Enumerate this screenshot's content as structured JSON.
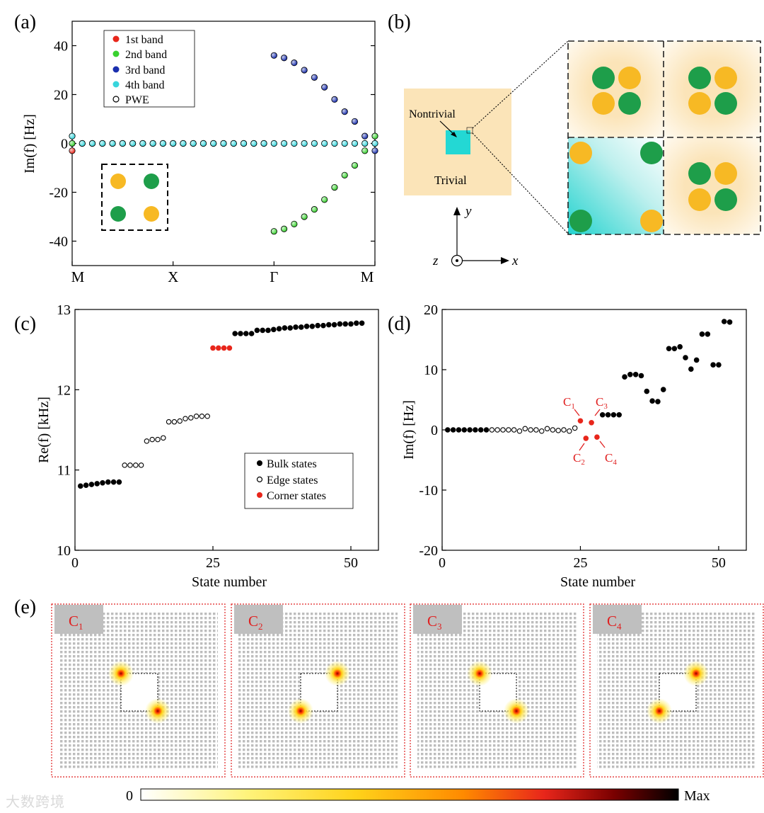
{
  "panels": {
    "a": {
      "label": "(a)",
      "ylabel": "Im(f) [Hz]",
      "ytick_labels": [
        "40",
        "20",
        "0",
        "-20",
        "-40"
      ],
      "xtick_labels": [
        "M",
        "X",
        "Γ",
        "M"
      ],
      "legend": [
        "1st band",
        "2nd band",
        "3rd band",
        "4th band",
        "PWE"
      ]
    },
    "b": {
      "label": "(b)",
      "nontrivial_label": "Nontrivial",
      "trivial_label": "Trivial",
      "axis_x": "x",
      "axis_y": "y",
      "axis_z": "z"
    },
    "c": {
      "label": "(c)",
      "xlabel": "State number",
      "ylabel": "Re(f) [kHz]",
      "ytick_labels": [
        "13",
        "12",
        "11",
        "10"
      ],
      "xtick_labels": [
        "0",
        "25",
        "50"
      ],
      "legend": [
        "Bulk states",
        "Edge states",
        "Corner states"
      ]
    },
    "d": {
      "label": "(d)",
      "xlabel": "State number",
      "ylabel": "Im(f) [Hz]",
      "ytick_labels": [
        "20",
        "10",
        "0",
        "-10",
        "-20"
      ],
      "xtick_labels": [
        "0",
        "25",
        "50"
      ],
      "corner_labels": [
        {
          "main": "C",
          "sub": "1"
        },
        {
          "main": "C",
          "sub": "3"
        },
        {
          "main": "C",
          "sub": "2"
        },
        {
          "main": "C",
          "sub": "4"
        }
      ]
    },
    "e": {
      "label": "(e)",
      "maps": [
        {
          "main": "C",
          "sub": "1"
        },
        {
          "main": "C",
          "sub": "2"
        },
        {
          "main": "C",
          "sub": "3"
        },
        {
          "main": "C",
          "sub": "4"
        }
      ],
      "colorbar_min": "0",
      "colorbar_max": "Max"
    }
  },
  "watermark": "大数跨境",
  "colors": {
    "band1": "#e8261b",
    "band2": "#39d12f",
    "band3": "#1a2fae",
    "band4": "#38d5dc",
    "corner": "#e8261b",
    "green_rod": "#1e9e4a",
    "yellow_rod": "#f7b924",
    "trivial_bg": "#fbe9c4",
    "nontrivial": "#23d8d4",
    "red_text": "#e02020"
  },
  "chart_data": [
    {
      "panel": "a",
      "type": "scatter",
      "title": "",
      "xlabel": "",
      "ylabel": "Im(f) [Hz]",
      "ylim": [
        -50,
        50
      ],
      "xlim": [
        0,
        3
      ],
      "x_ticks": {
        "M": 0,
        "X": 1,
        "Γ": 2,
        "M_end": 3
      },
      "series": [
        {
          "name": "2nd band",
          "x": [
            0,
            0.1,
            0.2,
            0.3,
            0.4,
            0.5,
            0.6,
            0.7,
            0.8,
            0.9,
            1.0,
            1.1,
            1.2,
            1.3,
            1.4,
            1.5,
            1.6,
            1.7,
            1.8,
            1.9,
            2.0,
            2.1,
            2.2,
            2.3,
            2.4,
            2.5,
            2.6,
            2.7,
            2.8,
            2.9,
            3.0
          ],
          "y": [
            0,
            0,
            0,
            0,
            0,
            0,
            0,
            0,
            0,
            0,
            0,
            0,
            0,
            0,
            0,
            0,
            0,
            0,
            0,
            0,
            -36,
            -35,
            -33,
            -30,
            -27,
            -23,
            -18,
            -13,
            -9,
            -3,
            3
          ]
        },
        {
          "name": "3rd band",
          "x": [
            2.0,
            2.1,
            2.2,
            2.3,
            2.4,
            2.5,
            2.6,
            2.7,
            2.8,
            2.9,
            3.0
          ],
          "y": [
            36,
            35,
            33,
            30,
            27,
            23,
            18,
            13,
            9,
            3,
            -3
          ]
        },
        {
          "name": "4th band",
          "x": [
            0,
            0.1,
            0.2,
            0.3,
            0.4,
            0.5,
            0.6,
            0.7,
            0.8,
            0.9,
            1.0,
            1.1,
            1.2,
            1.3,
            1.4,
            1.5,
            1.6,
            1.7,
            1.8,
            1.9,
            2.0,
            2.1,
            2.2,
            2.3,
            2.4,
            2.5,
            2.6,
            2.7,
            2.8,
            2.9,
            3.0
          ],
          "y": [
            3,
            0,
            0,
            0,
            0,
            0,
            0,
            0,
            0,
            0,
            0,
            0,
            0,
            0,
            0,
            0,
            0,
            0,
            0,
            0,
            0,
            0,
            0,
            0,
            0,
            0,
            0,
            0,
            0,
            0,
            0
          ]
        },
        {
          "name": "1st band",
          "x": [
            0
          ],
          "y": [
            -3
          ]
        }
      ]
    },
    {
      "panel": "c",
      "type": "scatter",
      "title": "",
      "xlabel": "State number",
      "ylabel": "Re(f) [kHz]",
      "xlim": [
        0,
        55
      ],
      "ylim": [
        10,
        13
      ],
      "series": [
        {
          "name": "Bulk states",
          "x": [
            1,
            2,
            3,
            4,
            5,
            6,
            7,
            8,
            29,
            30,
            31,
            32,
            33,
            34,
            35,
            36,
            37,
            38,
            39,
            40,
            41,
            42,
            43,
            44,
            45,
            46,
            47,
            48,
            49,
            50,
            51,
            52
          ],
          "y": [
            10.8,
            10.81,
            10.82,
            10.83,
            10.84,
            10.85,
            10.85,
            10.85,
            12.7,
            12.7,
            12.7,
            12.7,
            12.74,
            12.74,
            12.74,
            12.75,
            12.76,
            12.77,
            12.77,
            12.78,
            12.78,
            12.79,
            12.79,
            12.8,
            12.8,
            12.81,
            12.81,
            12.82,
            12.82,
            12.82,
            12.83,
            12.83
          ]
        },
        {
          "name": "Edge states",
          "x": [
            9,
            10,
            11,
            12,
            13,
            14,
            15,
            16,
            17,
            18,
            19,
            20,
            21,
            22,
            23,
            24
          ],
          "y": [
            11.06,
            11.06,
            11.06,
            11.06,
            11.36,
            11.38,
            11.38,
            11.4,
            11.6,
            11.6,
            11.61,
            11.64,
            11.65,
            11.67,
            11.67,
            11.67
          ]
        },
        {
          "name": "Corner states",
          "x": [
            25,
            26,
            27,
            28
          ],
          "y": [
            12.52,
            12.52,
            12.52,
            12.52
          ]
        }
      ]
    },
    {
      "panel": "d",
      "type": "scatter",
      "title": "",
      "xlabel": "State number",
      "ylabel": "Im(f) [Hz]",
      "xlim": [
        0,
        55
      ],
      "ylim": [
        -20,
        20
      ],
      "series": [
        {
          "name": "Bulk states",
          "x": [
            1,
            2,
            3,
            4,
            5,
            6,
            7,
            8,
            29,
            30,
            31,
            32,
            33,
            34,
            35,
            36,
            37,
            38,
            39,
            40,
            41,
            42,
            43,
            44,
            45,
            46,
            47,
            48,
            49,
            50,
            51,
            52
          ],
          "y": [
            0,
            0,
            0,
            0,
            0,
            0,
            0,
            0,
            2.5,
            2.5,
            2.5,
            2.5,
            8.8,
            9.2,
            9.2,
            9.0,
            6.4,
            4.8,
            4.7,
            6.7,
            13.5,
            13.5,
            13.8,
            12.0,
            10.1,
            11.6,
            15.9,
            15.9,
            10.8,
            10.8,
            18.0,
            17.9
          ]
        },
        {
          "name": "Edge states",
          "x": [
            9,
            10,
            11,
            12,
            13,
            14,
            15,
            16,
            17,
            18,
            19,
            20,
            21,
            22,
            23,
            24
          ],
          "y": [
            0,
            0,
            0,
            0,
            0,
            -0.2,
            0.2,
            0,
            0,
            -0.2,
            0.2,
            0,
            -0.1,
            0,
            -0.2,
            0.3
          ]
        },
        {
          "name": "Corner states",
          "x": [
            25,
            26,
            27,
            28
          ],
          "y": [
            1.5,
            -1.4,
            1.2,
            -1.2
          ]
        }
      ]
    }
  ]
}
